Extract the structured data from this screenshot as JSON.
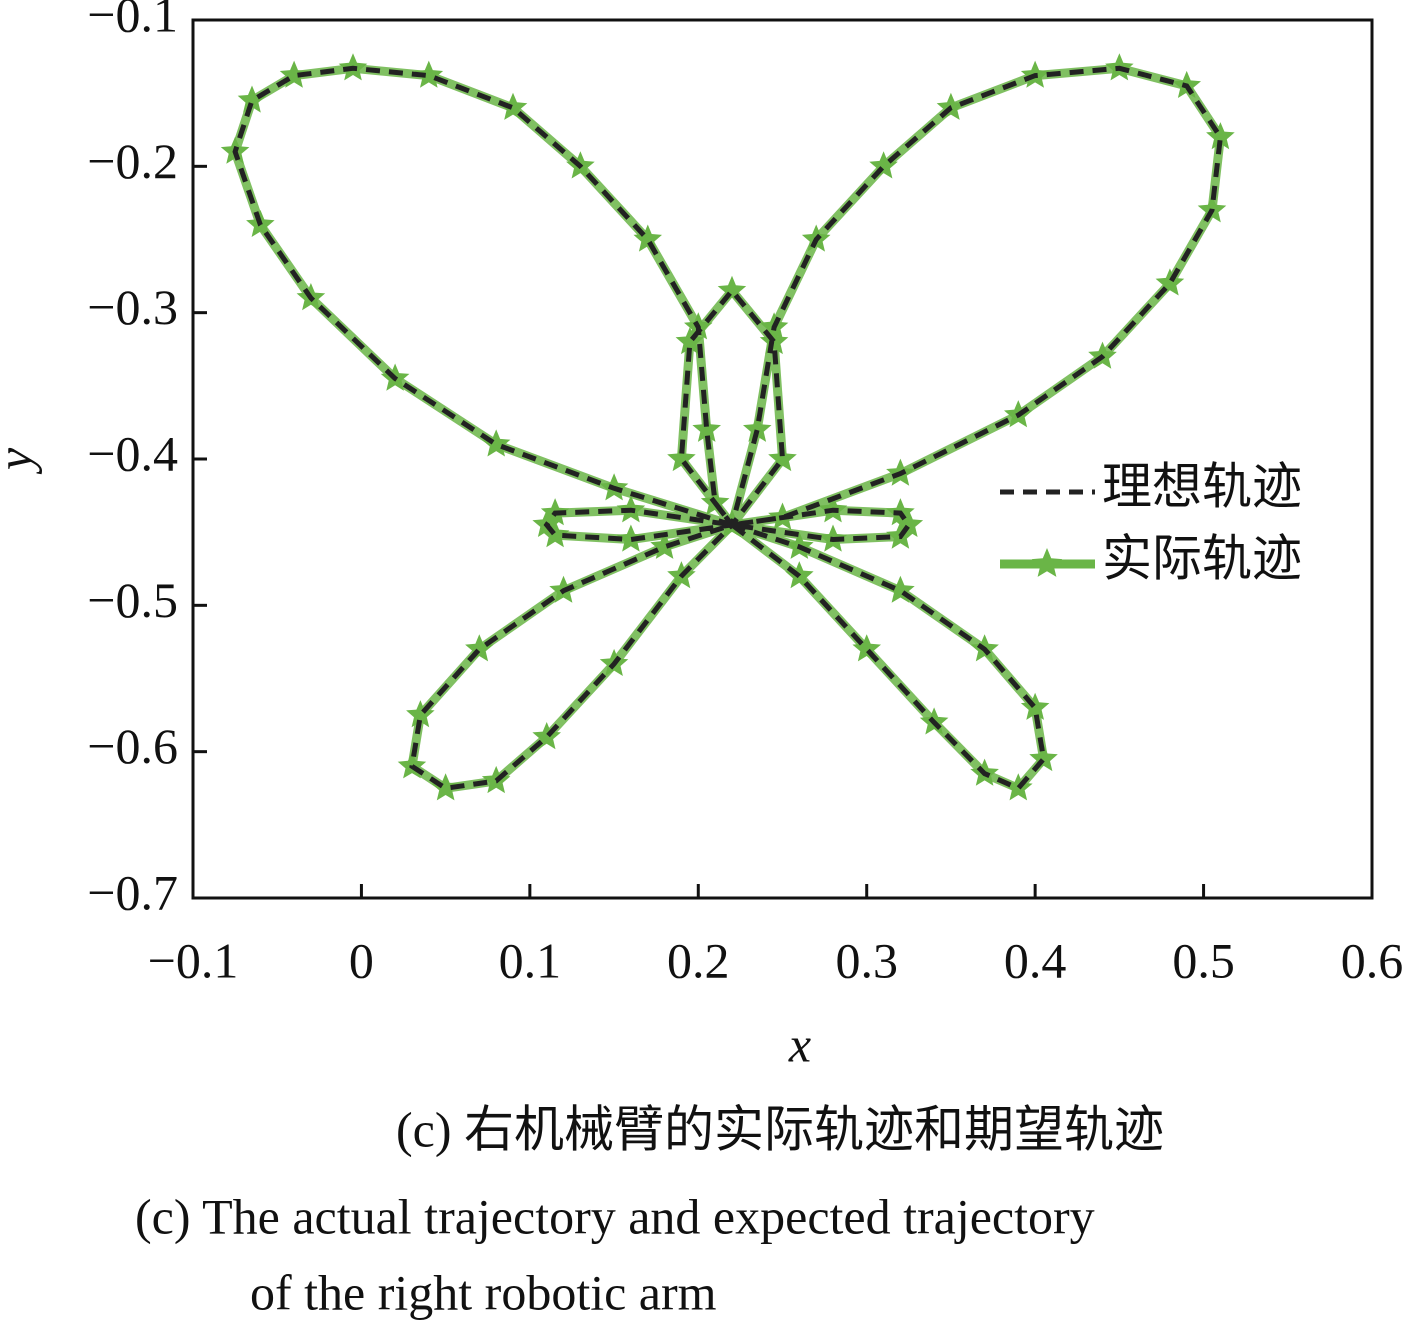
{
  "chart_data": {
    "type": "line",
    "xlabel": "x",
    "ylabel": "y",
    "caption_cn": "(c)  右机械臂的实际轨迹和期望轨迹",
    "caption_en": [
      "(c)  The actual trajectory and expected trajectory",
      "of the right robotic arm"
    ],
    "xlim": [
      -0.1,
      0.6
    ],
    "ylim": [
      -0.7,
      -0.1
    ],
    "xticks": [
      {
        "value": -0.1,
        "label": "−0.1"
      },
      0,
      0.1,
      0.2,
      0.3,
      0.4,
      0.5,
      0.6
    ],
    "yticks": [
      {
        "value": -0.1,
        "label": "−0.1"
      },
      {
        "value": -0.2,
        "label": "−0.2"
      },
      {
        "value": -0.3,
        "label": "−0.3"
      },
      {
        "value": -0.4,
        "label": "−0.4"
      },
      {
        "value": -0.5,
        "label": "−0.5"
      },
      {
        "value": -0.6,
        "label": "−0.6"
      },
      {
        "value": -0.7,
        "label": "−0.7"
      }
    ],
    "legend": "right",
    "x": [
      0.22,
      0.15,
      0.08,
      0.02,
      -0.03,
      -0.06,
      -0.075,
      -0.065,
      -0.04,
      -0.005,
      0.04,
      0.09,
      0.13,
      0.17,
      0.2,
      0.205,
      0.21,
      0.22,
      0.19,
      0.195,
      0.22,
      0.245,
      0.25,
      0.22,
      0.235,
      0.245,
      0.27,
      0.31,
      0.35,
      0.4,
      0.45,
      0.49,
      0.51,
      0.505,
      0.48,
      0.44,
      0.39,
      0.32,
      0.25,
      0.22,
      0.28,
      0.32,
      0.325,
      0.32,
      0.28,
      0.22,
      0.26,
      0.3,
      0.34,
      0.37,
      0.39,
      0.405,
      0.4,
      0.37,
      0.32,
      0.26,
      0.22,
      0.18,
      0.12,
      0.07,
      0.035,
      0.03,
      0.05,
      0.08,
      0.11,
      0.15,
      0.19,
      0.22,
      0.16,
      0.115,
      0.11,
      0.115,
      0.16,
      0.22
    ],
    "series": [
      {
        "name": "理想轨迹",
        "color": "#222222",
        "style": "dashed",
        "values": [
          -0.445,
          -0.42,
          -0.39,
          -0.345,
          -0.29,
          -0.24,
          -0.19,
          -0.155,
          -0.138,
          -0.133,
          -0.138,
          -0.16,
          -0.2,
          -0.25,
          -0.31,
          -0.38,
          -0.43,
          -0.445,
          -0.4,
          -0.32,
          -0.285,
          -0.32,
          -0.4,
          -0.445,
          -0.38,
          -0.31,
          -0.25,
          -0.2,
          -0.16,
          -0.138,
          -0.133,
          -0.145,
          -0.18,
          -0.23,
          -0.28,
          -0.33,
          -0.37,
          -0.41,
          -0.44,
          -0.445,
          -0.435,
          -0.437,
          -0.445,
          -0.453,
          -0.455,
          -0.445,
          -0.48,
          -0.53,
          -0.58,
          -0.615,
          -0.625,
          -0.605,
          -0.57,
          -0.53,
          -0.49,
          -0.46,
          -0.445,
          -0.46,
          -0.49,
          -0.53,
          -0.575,
          -0.61,
          -0.625,
          -0.62,
          -0.59,
          -0.54,
          -0.48,
          -0.445,
          -0.455,
          -0.452,
          -0.445,
          -0.437,
          -0.435,
          -0.445
        ]
      },
      {
        "name": "实际轨迹",
        "color": "#6ab547",
        "style": "star",
        "values": [
          -0.445,
          -0.42,
          -0.39,
          -0.345,
          -0.29,
          -0.24,
          -0.19,
          -0.155,
          -0.138,
          -0.133,
          -0.138,
          -0.16,
          -0.2,
          -0.25,
          -0.31,
          -0.38,
          -0.43,
          -0.445,
          -0.4,
          -0.32,
          -0.285,
          -0.32,
          -0.4,
          -0.445,
          -0.38,
          -0.31,
          -0.25,
          -0.2,
          -0.16,
          -0.138,
          -0.133,
          -0.145,
          -0.18,
          -0.23,
          -0.28,
          -0.33,
          -0.37,
          -0.41,
          -0.44,
          -0.445,
          -0.435,
          -0.437,
          -0.445,
          -0.453,
          -0.455,
          -0.445,
          -0.48,
          -0.53,
          -0.58,
          -0.615,
          -0.625,
          -0.605,
          -0.57,
          -0.53,
          -0.49,
          -0.46,
          -0.445,
          -0.46,
          -0.49,
          -0.53,
          -0.575,
          -0.61,
          -0.625,
          -0.62,
          -0.59,
          -0.54,
          -0.48,
          -0.445,
          -0.455,
          -0.452,
          -0.445,
          -0.437,
          -0.435,
          -0.445
        ]
      }
    ]
  }
}
